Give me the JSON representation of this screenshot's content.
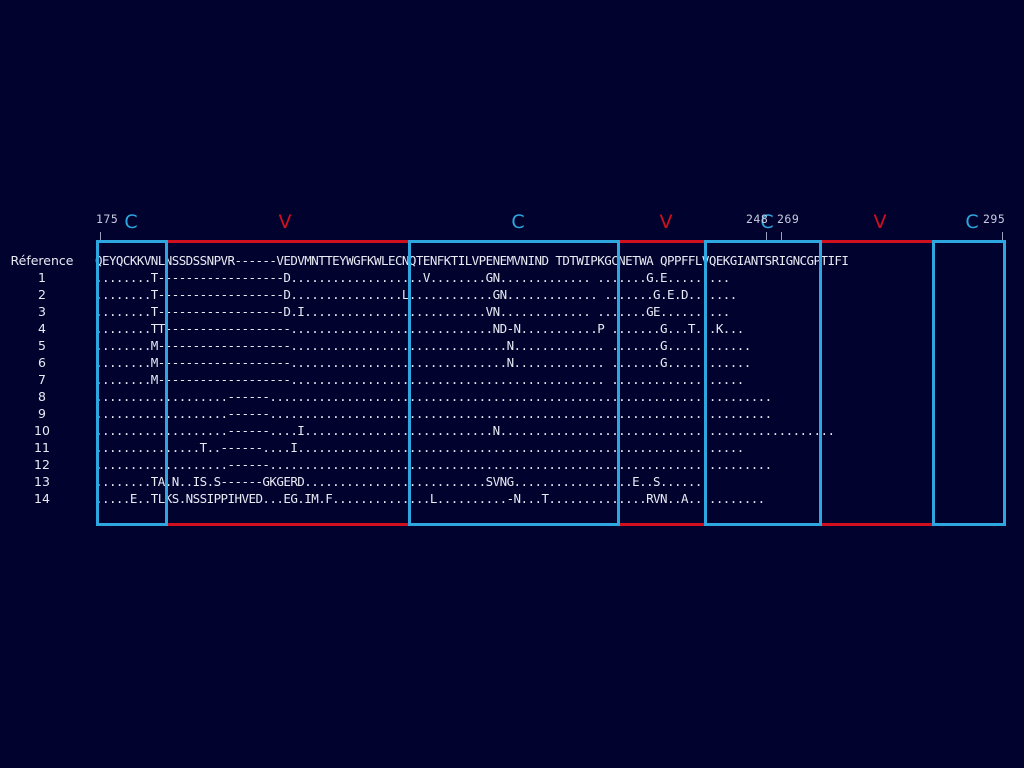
{
  "region_labels": {
    "r1": "C",
    "r2": "V",
    "r3": "C",
    "r4": "V",
    "r5": "C",
    "r6": "V",
    "r7": "C"
  },
  "positions": {
    "p175": "175",
    "p248": "248",
    "p269": "269",
    "p295": "295"
  },
  "colors": {
    "background": "#02022e",
    "conserved_region": "#2ea6e0",
    "variable_region": "#d0101e",
    "text": "#e8eaf4"
  },
  "alignment": {
    "rows": [
      {
        "name": "Réference",
        "seq": "QEYQCKKVNLNSSDSSNPVR------VEDVMNTTEYWGFKWLECNQTENFKTILVPENEMVNIND TDTWIPKGCNETWA QPPFFLVQEKGIANTSRIGNCGPTIFI"
      },
      {
        "name": "1",
        "seq": "........T------------------D...................V........GN............. .......G.E........."
      },
      {
        "name": "2",
        "seq": "........T------------------D................L............GN............. .......G.E.D......."
      },
      {
        "name": "3",
        "seq": "........T------------------D.I..........................VN............. .......GE.........."
      },
      {
        "name": "4",
        "seq": "........TT------------------.............................ND-N...........P .......G...T...K..."
      },
      {
        "name": "5",
        "seq": "........M-------------------...............................N............. .......G............"
      },
      {
        "name": "6",
        "seq": "........M-------------------...............................N............. .......G............"
      },
      {
        "name": "7",
        "seq": "........M-------------------............................................. ..................."
      },
      {
        "name": "8",
        "seq": "...................------........................................................................"
      },
      {
        "name": "9",
        "seq": "...................------........................................................................"
      },
      {
        "name": "10",
        "seq": "...................------....I...........................N................................................"
      },
      {
        "name": "11",
        "seq": "...............T..------....I................................................................"
      },
      {
        "name": "12",
        "seq": "...................------........................................................................"
      },
      {
        "name": "13",
        "seq": "........TA.N..IS.S------GKGERD..........................SVNG.................E..S......"
      },
      {
        "name": "14",
        "seq": ".....E..TLKS.NSSIPPIHVED...EG.IM.F..............L..........-N...T..............RVN..A..........."
      }
    ]
  }
}
